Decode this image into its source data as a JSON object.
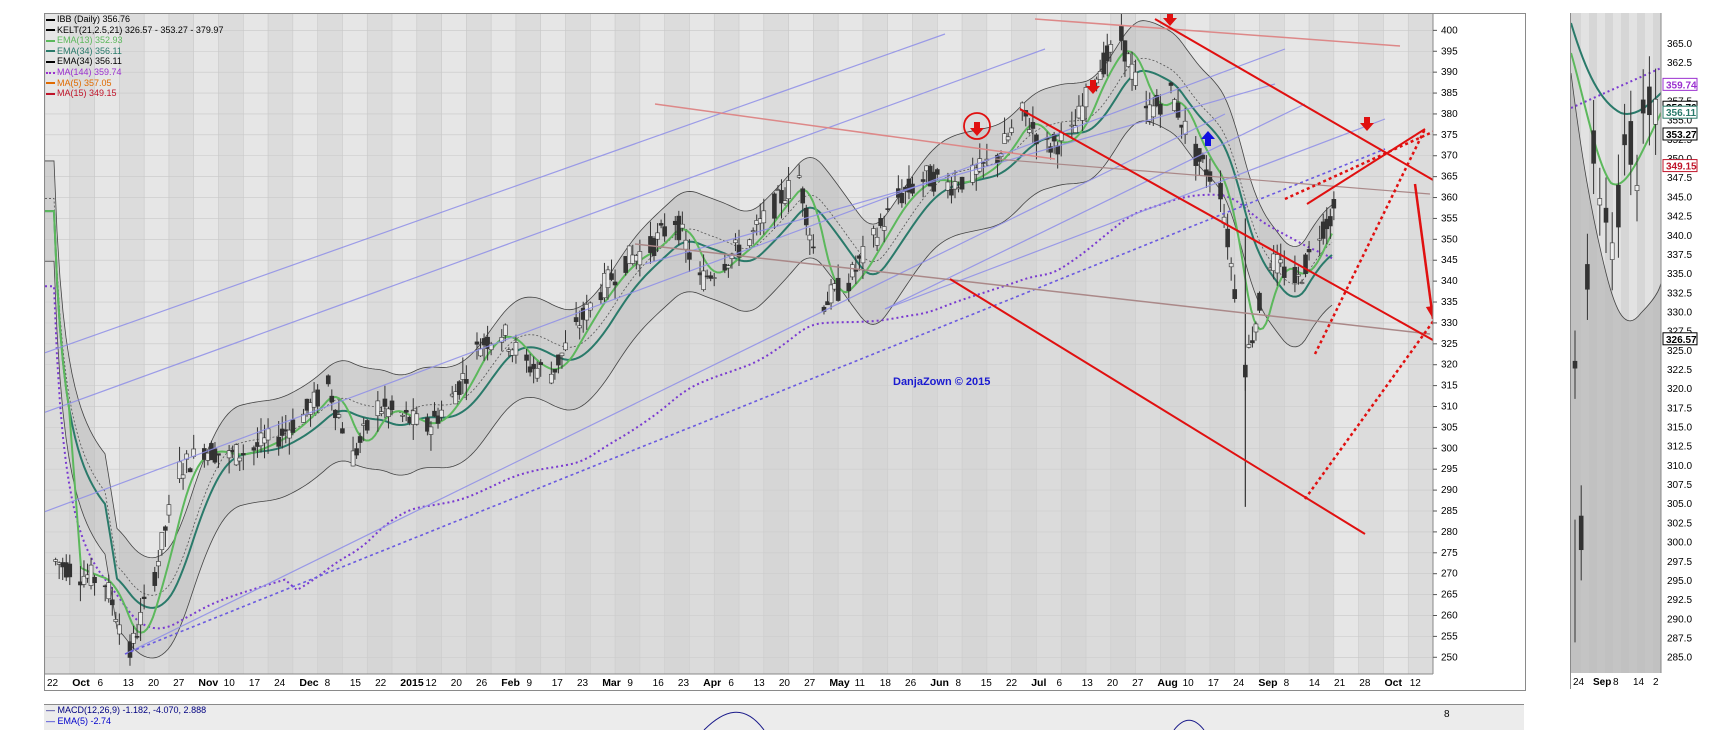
{
  "legend": [
    {
      "label": "IBB (Daily) 356.76",
      "color": "#000000",
      "swatch": "bar"
    },
    {
      "label": "KELT(21,2.5,21) 326.57 - 353.27 - 379.97",
      "color": "#000000",
      "swatch": "line"
    },
    {
      "label": "EMA(13) 352.93",
      "color": "#5cb85c",
      "swatch": "line"
    },
    {
      "label": "EMA(34) 356.11",
      "color": "#2a7a6a",
      "swatch": "line"
    },
    {
      "label": "EMA(34) 356.11",
      "color": "#000000",
      "swatch": "tri"
    },
    {
      "label": "MA(144) 359.74",
      "color": "#9b30d0",
      "swatch": "dot"
    },
    {
      "label": "MA(5) 357.05",
      "color": "#e06a00",
      "swatch": "line"
    },
    {
      "label": "MA(15) 349.15",
      "color": "#c0142a",
      "swatch": "line"
    }
  ],
  "macd_legend": [
    {
      "label": "MACD(12,26,9) -1.182, -4.070, 2.888",
      "color": "#000080"
    },
    {
      "label": "EMA(5) -2.74",
      "color": "#0000cc"
    }
  ],
  "watermark": "DanjaZown © 2015",
  "chart_data": {
    "type": "candlestick",
    "ticker": "IBB (Daily)",
    "last": 356.76,
    "ylim": [
      246,
      402
    ],
    "y_ticks": [
      250,
      255,
      260,
      265,
      270,
      275,
      280,
      285,
      290,
      295,
      300,
      305,
      310,
      315,
      320,
      325,
      330,
      335,
      340,
      345,
      350,
      355,
      360,
      365,
      370,
      375,
      380,
      385,
      390,
      395,
      400
    ],
    "x_tick_labels": [
      "22",
      "Oct",
      "6",
      "13",
      "20",
      "27",
      "Nov",
      "10",
      "17",
      "24",
      "Dec",
      "8",
      "15",
      "22",
      "2015",
      "12",
      "20",
      "26",
      "Feb",
      "9",
      "17",
      "23",
      "Mar",
      "9",
      "16",
      "23",
      "Apr",
      "6",
      "13",
      "20",
      "27",
      "May",
      "11",
      "18",
      "26",
      "Jun",
      "8",
      "15",
      "22",
      "Jul",
      "6",
      "13",
      "20",
      "27",
      "Aug",
      "10",
      "17",
      "24",
      "Sep",
      "8",
      "14",
      "21",
      "28",
      "Oct",
      "12"
    ],
    "month_labels": [
      "Oct",
      "Nov",
      "Dec",
      "2015",
      "Feb",
      "Mar",
      "Apr",
      "May",
      "Jun",
      "Jul",
      "Aug",
      "Sep",
      "Oct"
    ],
    "price_path": [
      {
        "date": "2014-09-22",
        "close": 273
      },
      {
        "date": "2014-09-29",
        "close": 270
      },
      {
        "date": "2014-10-06",
        "close": 268
      },
      {
        "date": "2014-10-13",
        "close": 251
      },
      {
        "date": "2014-10-20",
        "close": 270
      },
      {
        "date": "2014-10-27",
        "close": 295
      },
      {
        "date": "2014-11-03",
        "close": 300
      },
      {
        "date": "2014-11-10",
        "close": 298
      },
      {
        "date": "2014-11-17",
        "close": 300
      },
      {
        "date": "2014-11-24",
        "close": 303
      },
      {
        "date": "2014-12-01",
        "close": 308
      },
      {
        "date": "2014-12-08",
        "close": 315
      },
      {
        "date": "2014-12-15",
        "close": 298
      },
      {
        "date": "2014-12-22",
        "close": 310
      },
      {
        "date": "2015-01-05",
        "close": 305
      },
      {
        "date": "2015-01-12",
        "close": 312
      },
      {
        "date": "2015-01-20",
        "close": 325
      },
      {
        "date": "2015-01-26",
        "close": 328
      },
      {
        "date": "2015-02-02",
        "close": 320
      },
      {
        "date": "2015-02-09",
        "close": 318
      },
      {
        "date": "2015-02-17",
        "close": 330
      },
      {
        "date": "2015-02-23",
        "close": 338
      },
      {
        "date": "2015-03-02",
        "close": 345
      },
      {
        "date": "2015-03-09",
        "close": 348
      },
      {
        "date": "2015-03-16",
        "close": 355
      },
      {
        "date": "2015-03-23",
        "close": 340
      },
      {
        "date": "2015-03-30",
        "close": 345
      },
      {
        "date": "2015-04-06",
        "close": 350
      },
      {
        "date": "2015-04-13",
        "close": 358
      },
      {
        "date": "2015-04-20",
        "close": 365
      },
      {
        "date": "2015-04-27",
        "close": 335
      },
      {
        "date": "2015-05-04",
        "close": 340
      },
      {
        "date": "2015-05-11",
        "close": 350
      },
      {
        "date": "2015-05-18",
        "close": 360
      },
      {
        "date": "2015-05-26",
        "close": 365
      },
      {
        "date": "2015-06-01",
        "close": 363
      },
      {
        "date": "2015-06-08",
        "close": 365
      },
      {
        "date": "2015-06-15",
        "close": 370
      },
      {
        "date": "2015-06-22",
        "close": 380
      },
      {
        "date": "2015-06-29",
        "close": 372
      },
      {
        "date": "2015-07-06",
        "close": 375
      },
      {
        "date": "2015-07-13",
        "close": 390
      },
      {
        "date": "2015-07-20",
        "close": 398
      },
      {
        "date": "2015-07-27",
        "close": 380
      },
      {
        "date": "2015-08-03",
        "close": 385
      },
      {
        "date": "2015-08-10",
        "close": 370
      },
      {
        "date": "2015-08-17",
        "close": 362
      },
      {
        "date": "2015-08-24",
        "close": 320
      },
      {
        "date": "2015-08-31",
        "close": 345
      },
      {
        "date": "2015-09-08",
        "close": 340
      },
      {
        "date": "2015-09-14",
        "close": 352
      },
      {
        "date": "2015-09-18",
        "close": 356.76
      }
    ],
    "indicators": [
      {
        "name": "KELT(21,2.5,21)",
        "values": [
          326.57,
          353.27,
          379.97
        ]
      },
      {
        "name": "EMA(13)",
        "value": 352.93
      },
      {
        "name": "EMA(34)",
        "value": 356.11
      },
      {
        "name": "MA(144)",
        "value": 359.74
      },
      {
        "name": "MA(5)",
        "value": 357.05
      },
      {
        "name": "MA(15)",
        "value": 349.15
      }
    ],
    "annotations": [
      "red arrows down at Jun 1, Jun 22, Jul 20, Sep 14",
      "blue arrow up at Jul 30",
      "projected red path down to ~322 then up to ~368"
    ]
  },
  "side_chart": {
    "x_tick_labels": [
      "24",
      "Sep",
      "8",
      "14",
      "2"
    ],
    "y_ticks": [
      285,
      287.5,
      290,
      292.5,
      295,
      297.5,
      300,
      302.5,
      305,
      307.5,
      310,
      312.5,
      315,
      317.5,
      320,
      322.5,
      325,
      327.5,
      330,
      332.5,
      335,
      337.5,
      340,
      342.5,
      345,
      347.5,
      350,
      352.5,
      355,
      357.5,
      360,
      362.5,
      365
    ],
    "ylim": [
      283,
      368
    ],
    "badges": [
      {
        "label": "359.74",
        "color": "#9b30d0"
      },
      {
        "label": "356.76",
        "color": "#000000"
      },
      {
        "label": "356.11",
        "color": "#2a7a6a"
      },
      {
        "label": "353.27",
        "color": "#000000"
      },
      {
        "label": "349.15",
        "color": "#c0142a"
      },
      {
        "label": "326.57",
        "color": "#000000"
      }
    ],
    "badge_values": [
      359.74,
      356.76,
      356.11,
      353.27,
      349.15,
      326.57
    ],
    "macd_badge": "2.888"
  },
  "colors": {
    "background": "#dcdcdc",
    "keltner_fill": "#bebebe",
    "ema13": "#5cb85c",
    "ema34": "#2a7a6a",
    "ma144": "#7a3ad0",
    "trend_red": "#e01010",
    "trend_blue": "#8e8ee8"
  }
}
